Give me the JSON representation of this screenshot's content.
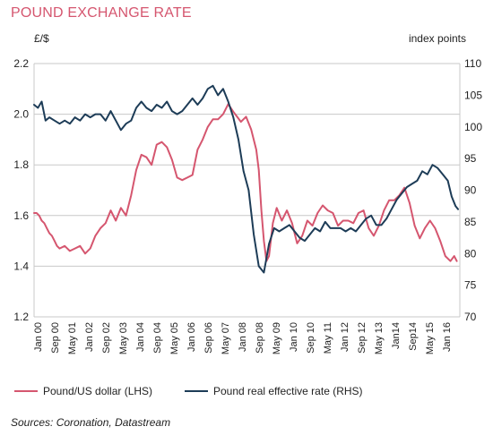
{
  "title": "POUND EXCHANGE RATE",
  "source": "Sources: Coronation, Datastream",
  "colors": {
    "usd": "#d5566f",
    "reer": "#1d3c57",
    "grid": "#c8c8c8",
    "title": "#d5566f"
  },
  "chart_data": {
    "type": "line",
    "title": "POUND EXCHANGE RATE",
    "left_axis": {
      "label": "£/$",
      "ticks": [
        "2.2",
        "2.0",
        "1.8",
        "1.6",
        "1.4",
        "1.2"
      ],
      "range": [
        1.2,
        2.2
      ]
    },
    "right_axis": {
      "label": "index points",
      "ticks": [
        "110",
        "105",
        "100",
        "95",
        "90",
        "85",
        "80",
        "75",
        "70"
      ],
      "range": [
        70,
        110
      ]
    },
    "x_labels": [
      "Jan 00",
      "Sep 00",
      "May 01",
      "Jan 02",
      "Sep 02",
      "May 03",
      "Jan 04",
      "Sep 04",
      "May 05",
      "Jan 06",
      "Sep 06",
      "May 07",
      "Jan 08",
      "Sep 08",
      "May 09",
      "Jan 10",
      "Sep 10",
      "May 11",
      "Jan 12",
      "Sep 12",
      "May 13",
      "Jan14",
      "Sep14",
      "May 15",
      "Jan 16"
    ],
    "x_range": [
      2000.0,
      2016.67
    ],
    "grid": "horizontal",
    "legend_position": "bottom",
    "series": [
      {
        "name": "Pound/US dollar (LHS)",
        "axis": "left",
        "color": "#d5566f",
        "x": [
          2000.0,
          2000.1,
          2000.2,
          2000.3,
          2000.4,
          2000.5,
          2000.6,
          2000.7,
          2000.8,
          2000.9,
          2001.0,
          2001.2,
          2001.4,
          2001.6,
          2001.8,
          2002.0,
          2002.2,
          2002.4,
          2002.6,
          2002.8,
          2003.0,
          2003.2,
          2003.4,
          2003.6,
          2003.8,
          2004.0,
          2004.2,
          2004.4,
          2004.6,
          2004.8,
          2005.0,
          2005.2,
          2005.4,
          2005.6,
          2005.8,
          2006.0,
          2006.2,
          2006.4,
          2006.6,
          2006.8,
          2007.0,
          2007.2,
          2007.4,
          2007.6,
          2007.8,
          2007.95,
          2008.1,
          2008.3,
          2008.5,
          2008.7,
          2008.8,
          2008.9,
          2009.0,
          2009.1,
          2009.2,
          2009.35,
          2009.5,
          2009.7,
          2009.9,
          2010.1,
          2010.3,
          2010.5,
          2010.7,
          2010.9,
          2011.1,
          2011.3,
          2011.5,
          2011.7,
          2011.9,
          2012.1,
          2012.3,
          2012.5,
          2012.7,
          2012.9,
          2013.1,
          2013.3,
          2013.5,
          2013.7,
          2013.9,
          2014.1,
          2014.3,
          2014.5,
          2014.7,
          2014.9,
          2015.1,
          2015.3,
          2015.5,
          2015.7,
          2015.9,
          2016.1,
          2016.3,
          2016.45,
          2016.55
        ],
        "y": [
          1.61,
          1.61,
          1.6,
          1.58,
          1.57,
          1.55,
          1.53,
          1.52,
          1.5,
          1.48,
          1.47,
          1.48,
          1.46,
          1.47,
          1.48,
          1.45,
          1.47,
          1.52,
          1.55,
          1.57,
          1.62,
          1.58,
          1.63,
          1.6,
          1.68,
          1.78,
          1.84,
          1.83,
          1.8,
          1.88,
          1.89,
          1.87,
          1.82,
          1.75,
          1.74,
          1.75,
          1.76,
          1.86,
          1.9,
          1.95,
          1.98,
          1.98,
          2.0,
          2.04,
          2.01,
          1.99,
          1.97,
          1.99,
          1.94,
          1.86,
          1.78,
          1.62,
          1.5,
          1.42,
          1.44,
          1.57,
          1.63,
          1.58,
          1.62,
          1.57,
          1.49,
          1.52,
          1.58,
          1.56,
          1.61,
          1.64,
          1.62,
          1.61,
          1.56,
          1.58,
          1.58,
          1.57,
          1.61,
          1.62,
          1.55,
          1.52,
          1.56,
          1.62,
          1.66,
          1.66,
          1.68,
          1.71,
          1.65,
          1.56,
          1.51,
          1.55,
          1.58,
          1.55,
          1.5,
          1.44,
          1.42,
          1.44,
          1.42
        ]
      },
      {
        "name": "Pound real effective rate (RHS)",
        "axis": "right",
        "color": "#1d3c57",
        "x": [
          2000.0,
          2000.15,
          2000.3,
          2000.45,
          2000.6,
          2000.8,
          2001.0,
          2001.2,
          2001.4,
          2001.6,
          2001.8,
          2002.0,
          2002.2,
          2002.4,
          2002.6,
          2002.8,
          2003.0,
          2003.2,
          2003.4,
          2003.6,
          2003.8,
          2004.0,
          2004.2,
          2004.4,
          2004.6,
          2004.8,
          2005.0,
          2005.2,
          2005.4,
          2005.6,
          2005.8,
          2006.0,
          2006.2,
          2006.4,
          2006.6,
          2006.8,
          2007.0,
          2007.2,
          2007.4,
          2007.6,
          2007.8,
          2008.0,
          2008.2,
          2008.4,
          2008.6,
          2008.8,
          2009.0,
          2009.2,
          2009.4,
          2009.6,
          2009.8,
          2010.0,
          2010.2,
          2010.4,
          2010.6,
          2010.8,
          2011.0,
          2011.2,
          2011.4,
          2011.6,
          2011.8,
          2012.0,
          2012.2,
          2012.4,
          2012.6,
          2012.8,
          2013.0,
          2013.2,
          2013.4,
          2013.6,
          2013.8,
          2014.0,
          2014.2,
          2014.4,
          2014.6,
          2014.8,
          2015.0,
          2015.2,
          2015.4,
          2015.6,
          2015.8,
          2016.0,
          2016.2,
          2016.35,
          2016.5,
          2016.6
        ],
        "y": [
          103.5,
          103.0,
          104.0,
          101.0,
          101.5,
          101.0,
          100.5,
          101.0,
          100.5,
          101.5,
          101.0,
          102.0,
          101.5,
          102.0,
          102.0,
          101.0,
          102.5,
          101.0,
          99.5,
          100.5,
          101.0,
          103.0,
          104.0,
          103.0,
          102.5,
          103.5,
          103.0,
          104.0,
          102.5,
          102.0,
          102.5,
          103.5,
          104.5,
          103.5,
          104.5,
          106.0,
          106.5,
          105.0,
          106.0,
          104.0,
          101.5,
          98.0,
          93.0,
          90.0,
          83.0,
          78.0,
          77.0,
          81.5,
          84.0,
          83.5,
          84.0,
          84.5,
          83.5,
          82.5,
          82.0,
          83.0,
          84.0,
          83.5,
          85.0,
          84.0,
          84.0,
          84.0,
          83.5,
          84.0,
          83.5,
          84.5,
          85.5,
          86.0,
          84.5,
          84.5,
          85.5,
          87.0,
          88.5,
          89.5,
          90.5,
          91.0,
          91.5,
          93.0,
          92.5,
          94.0,
          93.5,
          92.5,
          91.5,
          89.0,
          87.5,
          87.0
        ]
      }
    ]
  }
}
